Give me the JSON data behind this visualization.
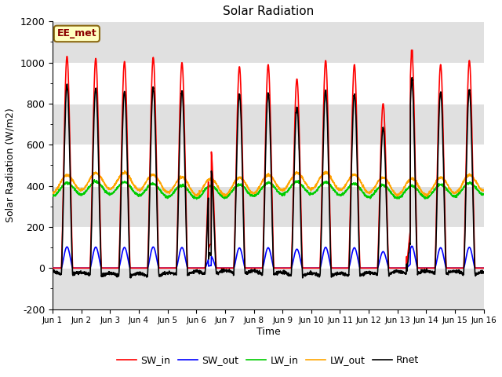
{
  "title": "Solar Radiation",
  "ylabel": "Solar Radiation (W/m2)",
  "xlabel": "Time",
  "ylim": [
    -200,
    1200
  ],
  "yticks": [
    -200,
    0,
    200,
    400,
    600,
    800,
    1000,
    1200
  ],
  "label_text": "EE_met",
  "label_bg": "#FFFFC0",
  "label_border": "#8B0000",
  "legend_entries": [
    "SW_in",
    "SW_out",
    "LW_in",
    "LW_out",
    "Rnet"
  ],
  "colors": {
    "SW_in": "#FF0000",
    "SW_out": "#0000FF",
    "LW_in": "#00CC00",
    "LW_out": "#FFA500",
    "Rnet": "#000000"
  },
  "line_width": 1.2,
  "bg_color": "#FFFFFF",
  "n_days": 15,
  "figsize": [
    6.4,
    4.8
  ],
  "dpi": 100
}
